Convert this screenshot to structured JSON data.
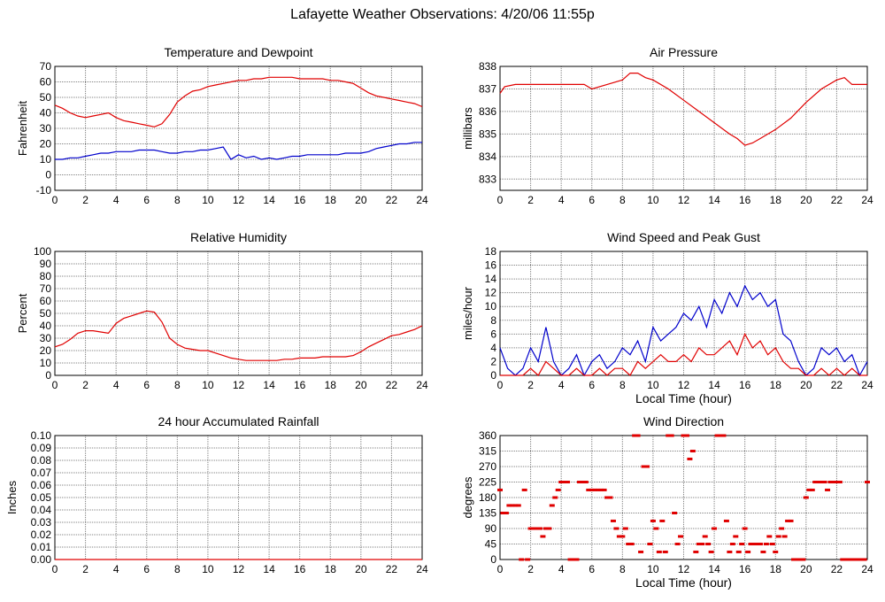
{
  "page": {
    "title": "Lafayette Weather Observations: 4/20/06 11:55p"
  },
  "colors": {
    "red": "#e00000",
    "blue": "#0000cc",
    "grid": "#808080",
    "axis": "#000000"
  },
  "chart_data": [
    {
      "id": "temp",
      "type": "line",
      "title": "Temperature and Dewpoint",
      "xlabel": "",
      "ylabel": "Fahrenheit",
      "xlim": [
        0,
        24
      ],
      "ylim": [
        -10,
        70
      ],
      "xticks": [
        0,
        2,
        4,
        6,
        8,
        10,
        12,
        14,
        16,
        18,
        20,
        22,
        24
      ],
      "yticks": [
        -10,
        0,
        10,
        20,
        30,
        40,
        50,
        60,
        70
      ],
      "series": [
        {
          "color": "#e00000",
          "x": [
            0,
            0.5,
            1,
            1.5,
            2,
            2.5,
            3,
            3.5,
            4,
            4.5,
            5,
            5.5,
            6,
            6.5,
            7,
            7.5,
            8,
            8.5,
            9,
            9.5,
            10,
            10.5,
            11,
            11.5,
            12,
            12.5,
            13,
            13.5,
            14,
            14.5,
            15,
            15.5,
            16,
            16.5,
            17,
            17.5,
            18,
            18.5,
            19,
            19.5,
            20,
            20.5,
            21,
            21.5,
            22,
            22.5,
            23,
            23.5,
            24
          ],
          "y": [
            45,
            43,
            40,
            38,
            37,
            38,
            39,
            40,
            37,
            35,
            34,
            33,
            32,
            31,
            33,
            39,
            47,
            51,
            54,
            55,
            57,
            58,
            59,
            60,
            61,
            61,
            62,
            62,
            63,
            63,
            63,
            63,
            62,
            62,
            62,
            62,
            61,
            61,
            60,
            59,
            56,
            53,
            51,
            50,
            49,
            48,
            47,
            46,
            44
          ]
        },
        {
          "color": "#0000cc",
          "x": [
            0,
            0.5,
            1,
            1.5,
            2,
            2.5,
            3,
            3.5,
            4,
            4.5,
            5,
            5.5,
            6,
            6.5,
            7,
            7.5,
            8,
            8.5,
            9,
            9.5,
            10,
            10.5,
            11,
            11.5,
            12,
            12.5,
            13,
            13.5,
            14,
            14.5,
            15,
            15.5,
            16,
            16.5,
            17,
            17.5,
            18,
            18.5,
            19,
            19.5,
            20,
            20.5,
            21,
            21.5,
            22,
            22.5,
            23,
            23.5,
            24
          ],
          "y": [
            10,
            10,
            11,
            11,
            12,
            13,
            14,
            14,
            15,
            15,
            15,
            16,
            16,
            16,
            15,
            14,
            14,
            15,
            15,
            16,
            16,
            17,
            18,
            10,
            13,
            11,
            12,
            10,
            11,
            10,
            11,
            12,
            12,
            13,
            13,
            13,
            13,
            13,
            14,
            14,
            14,
            15,
            17,
            18,
            19,
            20,
            20,
            21,
            21
          ]
        }
      ]
    },
    {
      "id": "pressure",
      "type": "line",
      "title": "Air Pressure",
      "xlabel": "",
      "ylabel": "millibars",
      "xlim": [
        0,
        24
      ],
      "ylim": [
        832.5,
        838
      ],
      "xticks": [
        0,
        2,
        4,
        6,
        8,
        10,
        12,
        14,
        16,
        18,
        20,
        22,
        24
      ],
      "yticks": [
        833,
        834,
        835,
        836,
        837,
        838
      ],
      "series": [
        {
          "color": "#e00000",
          "x": [
            0,
            0.3,
            1,
            2,
            3,
            4,
            5,
            5.5,
            6,
            7,
            8,
            8.5,
            9,
            9.5,
            10,
            11,
            12,
            13,
            14,
            15,
            15.5,
            16,
            16.5,
            17,
            18,
            19,
            20,
            21,
            22,
            22.5,
            23,
            24
          ],
          "y": [
            836.8,
            837.1,
            837.2,
            837.2,
            837.2,
            837.2,
            837.2,
            837.2,
            837.0,
            837.2,
            837.4,
            837.7,
            837.7,
            837.5,
            837.4,
            837.0,
            836.5,
            836.0,
            835.5,
            835.0,
            834.8,
            834.5,
            834.6,
            834.8,
            835.2,
            835.7,
            836.4,
            837.0,
            837.4,
            837.5,
            837.2,
            837.2
          ]
        }
      ]
    },
    {
      "id": "humidity",
      "type": "line",
      "title": "Relative Humidity",
      "xlabel": "",
      "ylabel": "Percent",
      "xlim": [
        0,
        24
      ],
      "ylim": [
        0,
        100
      ],
      "xticks": [
        0,
        2,
        4,
        6,
        8,
        10,
        12,
        14,
        16,
        18,
        20,
        22,
        24
      ],
      "yticks": [
        0,
        10,
        20,
        30,
        40,
        50,
        60,
        70,
        80,
        90,
        100
      ],
      "series": [
        {
          "color": "#e00000",
          "x": [
            0,
            0.5,
            1,
            1.5,
            2,
            2.5,
            3,
            3.5,
            4,
            4.5,
            5,
            5.5,
            6,
            6.5,
            7,
            7.5,
            8,
            8.5,
            9,
            9.5,
            10,
            10.5,
            11,
            11.5,
            12,
            12.5,
            13,
            13.5,
            14,
            14.5,
            15,
            15.5,
            16,
            16.5,
            17,
            17.5,
            18,
            18.5,
            19,
            19.5,
            20,
            20.5,
            21,
            21.5,
            22,
            22.5,
            23,
            23.5,
            24
          ],
          "y": [
            23,
            25,
            29,
            34,
            36,
            36,
            35,
            34,
            42,
            46,
            48,
            50,
            52,
            51,
            43,
            30,
            25,
            22,
            21,
            20,
            20,
            18,
            16,
            14,
            13,
            12,
            12,
            12,
            12,
            12,
            13,
            13,
            14,
            14,
            14,
            15,
            15,
            15,
            15,
            16,
            19,
            23,
            26,
            29,
            32,
            33,
            35,
            37,
            40
          ]
        }
      ]
    },
    {
      "id": "wind",
      "type": "line",
      "title": "Wind Speed and Peak Gust",
      "xlabel": "Local Time (hour)",
      "ylabel": "miles/hour",
      "xlim": [
        0,
        24
      ],
      "ylim": [
        0,
        18
      ],
      "xticks": [
        0,
        2,
        4,
        6,
        8,
        10,
        12,
        14,
        16,
        18,
        20,
        22,
        24
      ],
      "yticks": [
        0,
        2,
        4,
        6,
        8,
        10,
        12,
        14,
        16,
        18
      ],
      "series": [
        {
          "color": "#0000cc",
          "x": [
            0,
            0.5,
            1,
            1.5,
            2,
            2.5,
            3,
            3.5,
            4,
            4.5,
            5,
            5.5,
            6,
            6.5,
            7,
            7.5,
            8,
            8.5,
            9,
            9.5,
            10,
            10.5,
            11,
            11.5,
            12,
            12.5,
            13,
            13.5,
            14,
            14.5,
            15,
            15.5,
            16,
            16.5,
            17,
            17.5,
            18,
            18.5,
            19,
            19.5,
            20,
            20.5,
            21,
            21.5,
            22,
            22.5,
            23,
            23.5,
            24
          ],
          "y": [
            4,
            1,
            0,
            1,
            4,
            2,
            7,
            2,
            0,
            1,
            3,
            0,
            2,
            3,
            1,
            2,
            4,
            3,
            5,
            2,
            7,
            5,
            6,
            7,
            9,
            8,
            10,
            7,
            11,
            9,
            12,
            10,
            13,
            11,
            12,
            10,
            11,
            6,
            5,
            2,
            0,
            1,
            4,
            3,
            4,
            2,
            3,
            0,
            2
          ]
        },
        {
          "color": "#e00000",
          "x": [
            0,
            0.5,
            1,
            1.5,
            2,
            2.5,
            3,
            3.5,
            4,
            4.5,
            5,
            5.5,
            6,
            6.5,
            7,
            7.5,
            8,
            8.5,
            9,
            9.5,
            10,
            10.5,
            11,
            11.5,
            12,
            12.5,
            13,
            13.5,
            14,
            14.5,
            15,
            15.5,
            16,
            16.5,
            17,
            17.5,
            18,
            18.5,
            19,
            19.5,
            20,
            20.5,
            21,
            21.5,
            22,
            22.5,
            23,
            23.5,
            24
          ],
          "y": [
            0,
            0,
            0,
            0,
            1,
            0,
            2,
            1,
            0,
            0,
            1,
            0,
            0,
            1,
            0,
            1,
            1,
            0,
            2,
            1,
            2,
            3,
            2,
            2,
            3,
            2,
            4,
            3,
            3,
            4,
            5,
            3,
            6,
            4,
            5,
            3,
            4,
            2,
            1,
            1,
            0,
            0,
            1,
            0,
            1,
            0,
            1,
            0,
            0
          ]
        }
      ]
    },
    {
      "id": "rain",
      "type": "line",
      "title": "24 hour Accumulated Rainfall",
      "xlabel": "",
      "ylabel": "Inches",
      "xlim": [
        0,
        24
      ],
      "ylim": [
        0,
        0.1
      ],
      "xticks": [
        0,
        2,
        4,
        6,
        8,
        10,
        12,
        14,
        16,
        18,
        20,
        22,
        24
      ],
      "yticks": [
        0.0,
        0.01,
        0.02,
        0.03,
        0.04,
        0.05,
        0.06,
        0.07,
        0.08,
        0.09,
        0.1
      ],
      "ytick_labels": [
        "0.00",
        "0.01",
        "0.02",
        "0.03",
        "0.04",
        "0.05",
        "0.06",
        "0.07",
        "0.08",
        "0.09",
        "0.10"
      ],
      "series": [
        {
          "color": "#e00000",
          "x": [
            0,
            24
          ],
          "y": [
            0,
            0
          ]
        }
      ]
    },
    {
      "id": "dir",
      "type": "scatter",
      "title": "Wind Direction",
      "xlabel": "Local Time (hour)",
      "ylabel": "degrees",
      "xlim": [
        0,
        24
      ],
      "ylim": [
        0,
        360
      ],
      "xticks": [
        0,
        2,
        4,
        6,
        8,
        10,
        12,
        14,
        16,
        18,
        20,
        22,
        24
      ],
      "yticks": [
        0,
        45,
        90,
        135,
        180,
        225,
        270,
        315,
        360
      ],
      "series": [
        {
          "color": "#e00000",
          "x": [
            0,
            0.2,
            0.4,
            0.6,
            0.8,
            1.0,
            1.2,
            1.4,
            1.6,
            1.8,
            2.0,
            2.2,
            2.4,
            2.6,
            2.8,
            3.0,
            3.2,
            3.4,
            3.6,
            3.8,
            4.0,
            4.2,
            4.4,
            4.6,
            4.8,
            5.0,
            5.2,
            5.4,
            5.6,
            5.8,
            6.0,
            6.2,
            6.4,
            6.6,
            6.8,
            7.0,
            7.2,
            7.4,
            7.6,
            7.8,
            8.0,
            8.2,
            8.4,
            8.6,
            8.8,
            9.0,
            9.2,
            9.4,
            9.6,
            9.8,
            10.0,
            10.2,
            10.4,
            10.6,
            10.8,
            11.0,
            11.2,
            11.4,
            11.6,
            11.8,
            12.0,
            12.2,
            12.4,
            12.6,
            12.8,
            13.0,
            13.2,
            13.4,
            13.6,
            13.8,
            14.0,
            14.2,
            14.4,
            14.6,
            14.8,
            15.0,
            15.2,
            15.4,
            15.6,
            15.8,
            16.0,
            16.2,
            16.4,
            16.6,
            16.8,
            17.0,
            17.2,
            17.4,
            17.6,
            17.8,
            18.0,
            18.2,
            18.4,
            18.6,
            18.8,
            19.0,
            19.2,
            19.4,
            19.6,
            19.8,
            20.0,
            20.2,
            20.4,
            20.6,
            20.8,
            21.0,
            21.2,
            21.4,
            21.6,
            21.8,
            22.0,
            22.2,
            22.4,
            22.6,
            22.8,
            23.0,
            23.2,
            23.4,
            23.6,
            23.8,
            24.0
          ],
          "y": [
            202,
            135,
            135,
            157,
            157,
            157,
            157,
            0,
            202,
            0,
            90,
            90,
            90,
            90,
            67,
            90,
            90,
            157,
            180,
            202,
            225,
            225,
            225,
            0,
            0,
            0,
            225,
            225,
            225,
            202,
            202,
            202,
            202,
            202,
            202,
            180,
            180,
            112,
            90,
            67,
            67,
            90,
            45,
            45,
            360,
            360,
            22,
            270,
            270,
            45,
            112,
            90,
            22,
            112,
            22,
            360,
            360,
            135,
            45,
            67,
            360,
            360,
            292,
            315,
            22,
            45,
            45,
            67,
            45,
            22,
            90,
            360,
            360,
            360,
            112,
            22,
            45,
            67,
            22,
            45,
            90,
            22,
            45,
            45,
            45,
            45,
            22,
            45,
            67,
            45,
            22,
            67,
            90,
            67,
            112,
            112,
            0,
            0,
            0,
            0,
            180,
            202,
            202,
            225,
            225,
            225,
            225,
            202,
            225,
            225,
            225,
            225,
            0,
            0,
            0,
            0,
            0,
            0,
            0,
            0,
            225
          ]
        }
      ]
    }
  ]
}
